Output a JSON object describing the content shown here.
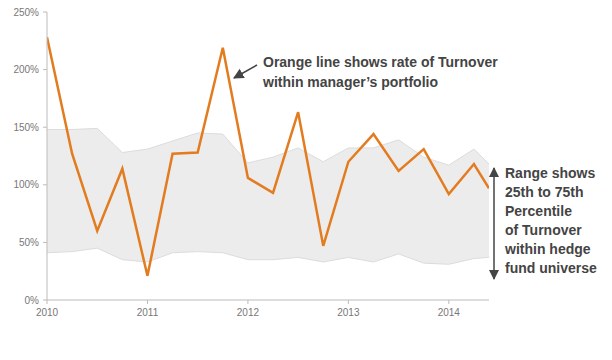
{
  "chart_data": {
    "type": "line",
    "x": [
      2010,
      2010.25,
      2010.5,
      2010.75,
      2011,
      2011.25,
      2011.5,
      2011.75,
      2012,
      2012.25,
      2012.5,
      2012.75,
      2013,
      2013.25,
      2013.5,
      2013.75,
      2014,
      2014.25,
      2014.4
    ],
    "series": [
      {
        "type": "range",
        "color": "#ececec",
        "low": [
          41,
          42,
          45,
          35,
          33,
          41,
          42,
          41,
          35,
          35,
          37,
          33,
          37,
          33,
          40,
          32,
          31,
          36,
          37
        ],
        "high": [
          148,
          148,
          149,
          128,
          131,
          138,
          145,
          144,
          119,
          124,
          132,
          120,
          132,
          132,
          139,
          124,
          117,
          131,
          118
        ]
      },
      {
        "type": "line",
        "color": "#e37b1f",
        "values": [
          228,
          127,
          60,
          114,
          21,
          127,
          128,
          219,
          106,
          93,
          163,
          47,
          120,
          144,
          112,
          131,
          92,
          118,
          97
        ]
      }
    ],
    "xlim": [
      2010,
      2014.4
    ],
    "xticks": [
      2010,
      2011,
      2012,
      2013,
      2014
    ],
    "ylim": [
      0,
      250
    ],
    "yticks": [
      {
        "value": 0,
        "label": "0%"
      },
      {
        "value": 50,
        "label": "50%"
      },
      {
        "value": 100,
        "label": "100%"
      },
      {
        "value": 150,
        "label": "150%"
      },
      {
        "value": 200,
        "label": "200%"
      },
      {
        "value": 250,
        "label": "250%"
      }
    ],
    "grid": false,
    "annotations": [
      {
        "lines": [
          "Orange line shows rate of Turnover",
          "within manager’s portfolio"
        ]
      },
      {
        "lines": [
          "Range shows",
          "25th to 75th",
          "Percentile",
          "of Turnover",
          "within hedge",
          "fund universe"
        ]
      }
    ]
  }
}
